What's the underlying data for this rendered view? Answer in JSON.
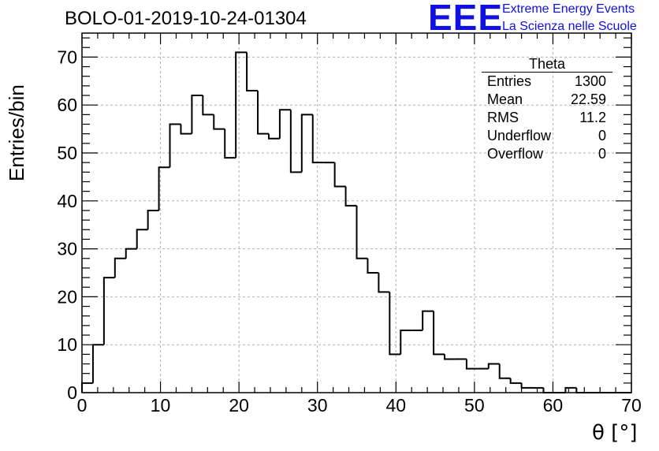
{
  "chart_data": {
    "type": "histogram",
    "title": "BOLO-01-2019-10-24-01304",
    "xlabel": "θ [°]",
    "ylabel": "Entries/bin",
    "xlim": [
      0,
      70
    ],
    "ylim": [
      0,
      75
    ],
    "bin_width": 1.4,
    "grid": true,
    "x_ticks": [
      0,
      10,
      20,
      30,
      40,
      50,
      60,
      70
    ],
    "y_ticks": [
      0,
      10,
      20,
      30,
      40,
      50,
      60,
      70
    ],
    "series": [
      {
        "values": [
          2,
          10,
          24,
          28,
          30,
          34,
          38,
          47,
          56,
          54,
          62,
          58,
          55,
          49,
          71,
          63,
          54,
          53,
          59,
          46,
          58,
          48,
          48,
          43,
          39,
          28,
          25,
          21,
          8,
          13,
          13,
          17,
          8,
          7,
          7,
          5,
          5,
          6,
          3,
          2,
          1,
          1,
          0,
          0,
          1,
          0,
          0,
          0,
          0,
          0
        ]
      }
    ]
  },
  "logo": {
    "mark": "EEE",
    "line1": "Extreme Energy Events",
    "line2": "La Scienza nelle Scuole"
  },
  "stats": {
    "title": "Theta",
    "rows": [
      {
        "key": "Entries",
        "value": "1300"
      },
      {
        "key": "Mean",
        "value": "22.59"
      },
      {
        "key": "RMS",
        "value": "11.2"
      },
      {
        "key": "Underflow",
        "value": "0"
      },
      {
        "key": "Overflow",
        "value": "0"
      }
    ]
  }
}
